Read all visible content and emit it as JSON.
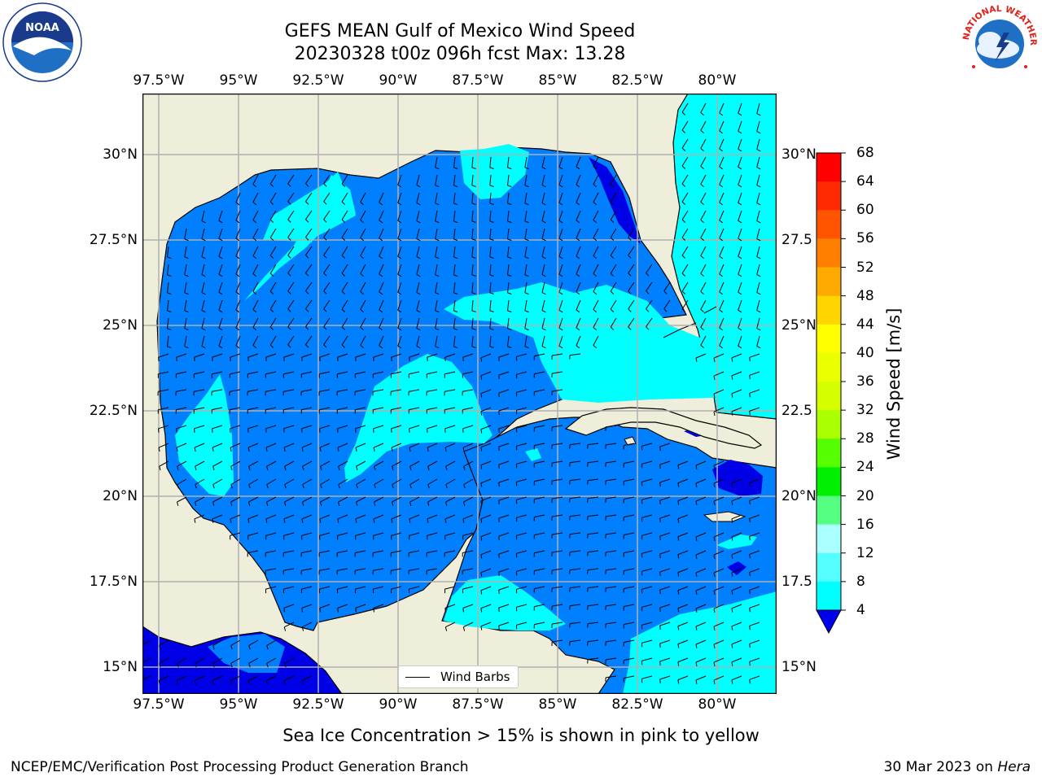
{
  "title": {
    "line1": "GEFS MEAN Gulf of Mexico Wind Speed",
    "line2": "20230328 t00z 096h fcst   Max: 13.28"
  },
  "map": {
    "lon_ticks": [
      "97.5°W",
      "95°W",
      "92.5°W",
      "90°W",
      "87.5°W",
      "85°W",
      "82.5°W",
      "80°W"
    ],
    "lat_ticks_left": [
      "30°N",
      "27.5°N",
      "25°N",
      "22.5°N",
      "20°N",
      "17.5°N",
      "15°N"
    ],
    "lat_ticks_right": [
      "30°N",
      "27.5",
      "25°N",
      "22.5",
      "20°N",
      "17.5",
      "15°N"
    ],
    "legend_label": "Wind Barbs",
    "colors": {
      "land": "#efeedb",
      "ocean_4_8": "#0080ff",
      "ocean_8_12": "#00ffff",
      "ocean_below_4": "#0000e6",
      "grid": "#b0b0b0"
    }
  },
  "colorbar": {
    "title": "Wind Speed [m/s]",
    "labels": [
      "68",
      "64",
      "60",
      "56",
      "52",
      "48",
      "44",
      "40",
      "36",
      "32",
      "28",
      "24",
      "20",
      "16",
      "12",
      "8",
      "4"
    ],
    "colors": [
      "#ff0000",
      "#ff2a00",
      "#ff5500",
      "#ff8000",
      "#ffaa00",
      "#ffd500",
      "#ffff00",
      "#eaff00",
      "#d5ff00",
      "#aaff00",
      "#55ff00",
      "#00ee00",
      "#55ff80",
      "#aaffff",
      "#55ffff",
      "#00ffff",
      "#0080ff"
    ],
    "extend_color": "#0000ee"
  },
  "subtitle": "Sea Ice Concentration > 15% is shown in pink to yellow",
  "footer": {
    "left": "NCEP/EMC/Verification Post Processing Product Generation Branch",
    "right_date": "30 Mar 2023 on ",
    "right_host": "Hera"
  },
  "logos": {
    "left_icon": "noaa-logo-icon",
    "left_text": "NOAA",
    "right_icon": "nws-logo-icon",
    "right_text": "NATIONAL WEATHER SERVICE"
  }
}
